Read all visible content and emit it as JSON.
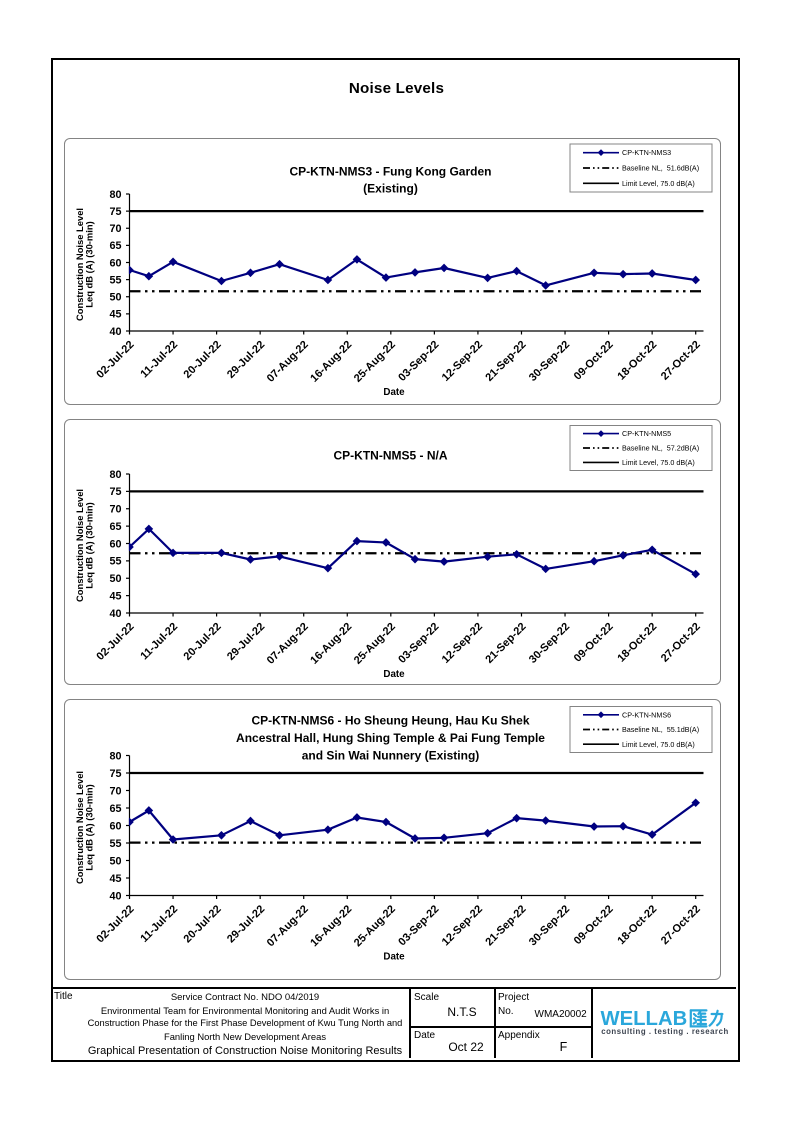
{
  "page": {
    "title": "Noise Levels"
  },
  "chart_data": [
    {
      "type": "line",
      "title": "CP-KTN-NMS3 - Fung Kong Garden (Existing)",
      "title_lines": [
        "CP-KTN-NMS3 - Fung Kong Garden",
        "(Existing)"
      ],
      "xlabel": "Date",
      "ylabel_lines": [
        "Construction Noise Level",
        "Leq dB (A) (30-min)"
      ],
      "ylim": [
        40,
        80
      ],
      "ytick_step": 5,
      "x_tick_labels": [
        "02-Jul-22",
        "11-Jul-22",
        "20-Jul-22",
        "29-Jul-22",
        "07-Aug-22",
        "16-Aug-22",
        "25-Aug-22",
        "03-Sep-22",
        "12-Sep-22",
        "21-Sep-22",
        "30-Sep-22",
        "09-Oct-22",
        "18-Oct-22",
        "27-Oct-22"
      ],
      "x_tick_day_offsets": [
        0,
        9,
        18,
        27,
        36,
        45,
        54,
        63,
        72,
        81,
        90,
        99,
        108,
        117
      ],
      "legend_position": "top-right",
      "legend_labels": [
        "CP-KTN-NMS3",
        "Baseline NL,  51.6dB(A)",
        "Limit Level, 75.0 dB(A)"
      ],
      "series": [
        {
          "name": "CP-KTN-NMS3",
          "color": "#000080",
          "x_dates": [
            "02-Jul-22",
            "06-Jul-22",
            "11-Jul-22",
            "21-Jul-22",
            "27-Jul-22",
            "02-Aug-22",
            "12-Aug-22",
            "18-Aug-22",
            "24-Aug-22",
            "30-Aug-22",
            "05-Sep-22",
            "14-Sep-22",
            "20-Sep-22",
            "26-Sep-22",
            "06-Oct-22",
            "12-Oct-22",
            "18-Oct-22",
            "27-Oct-22"
          ],
          "x_day_offsets": [
            0,
            4,
            9,
            19,
            25,
            31,
            41,
            47,
            53,
            59,
            65,
            74,
            80,
            86,
            96,
            102,
            108,
            117
          ],
          "values": [
            57.8,
            56.0,
            60.2,
            54.6,
            57.0,
            59.5,
            54.9,
            60.9,
            55.6,
            57.1,
            58.4,
            55.5,
            57.5,
            53.3,
            57.0,
            56.6,
            56.8,
            54.9
          ]
        }
      ],
      "baseline": {
        "label": "Baseline NL,  51.6dB(A)",
        "value": 51.6,
        "style": "dash-dot-dot",
        "color": "#000000"
      },
      "limit": {
        "label": "Limit Level, 75.0 dB(A)",
        "value": 75.0,
        "style": "solid",
        "color": "#000000"
      }
    },
    {
      "type": "line",
      "title": "CP-KTN-NMS5 - N/A",
      "title_lines": [
        "CP-KTN-NMS5 - N/A"
      ],
      "xlabel": "Date",
      "ylabel_lines": [
        "Construction Noise Level",
        "Leq dB (A) (30-min)"
      ],
      "ylim": [
        40,
        80
      ],
      "ytick_step": 5,
      "x_tick_labels": [
        "02-Jul-22",
        "11-Jul-22",
        "20-Jul-22",
        "29-Jul-22",
        "07-Aug-22",
        "16-Aug-22",
        "25-Aug-22",
        "03-Sep-22",
        "12-Sep-22",
        "21-Sep-22",
        "30-Sep-22",
        "09-Oct-22",
        "18-Oct-22",
        "27-Oct-22"
      ],
      "x_tick_day_offsets": [
        0,
        9,
        18,
        27,
        36,
        45,
        54,
        63,
        72,
        81,
        90,
        99,
        108,
        117
      ],
      "legend_position": "top-right",
      "legend_labels": [
        "CP-KTN-NMS5",
        "Baseline NL,  57.2dB(A)",
        "Limit Level, 75.0 dB(A)"
      ],
      "series": [
        {
          "name": "CP-KTN-NMS5",
          "color": "#000080",
          "x_dates": [
            "02-Jul-22",
            "06-Jul-22",
            "11-Jul-22",
            "21-Jul-22",
            "27-Jul-22",
            "02-Aug-22",
            "12-Aug-22",
            "18-Aug-22",
            "24-Aug-22",
            "30-Aug-22",
            "05-Sep-22",
            "14-Sep-22",
            "20-Sep-22",
            "26-Sep-22",
            "06-Oct-22",
            "12-Oct-22",
            "18-Oct-22",
            "27-Oct-22"
          ],
          "x_day_offsets": [
            0,
            4,
            9,
            19,
            25,
            31,
            41,
            47,
            53,
            59,
            65,
            74,
            80,
            86,
            96,
            102,
            108,
            117
          ],
          "values": [
            59.0,
            64.2,
            57.3,
            57.3,
            55.4,
            56.3,
            52.9,
            60.7,
            60.3,
            55.5,
            54.8,
            56.2,
            56.9,
            52.7,
            54.9,
            56.6,
            58.2,
            51.2
          ]
        }
      ],
      "baseline": {
        "label": "Baseline NL,  57.2dB(A)",
        "value": 57.2,
        "style": "dash-dot-dot",
        "color": "#000000"
      },
      "limit": {
        "label": "Limit Level, 75.0 dB(A)",
        "value": 75.0,
        "style": "solid",
        "color": "#000000"
      }
    },
    {
      "type": "line",
      "title": "CP-KTN-NMS6 - Ho Sheung Heung, Hau Ku Shek Ancestral Hall, Hung Shing Temple & Pai Fung Temple and Sin Wai Nunnery (Existing)",
      "title_lines": [
        "CP-KTN-NMS6 - Ho Sheung Heung, Hau Ku Shek",
        "Ancestral Hall, Hung Shing Temple & Pai Fung Temple",
        "and Sin Wai Nunnery (Existing)"
      ],
      "xlabel": "Date",
      "ylabel_lines": [
        "Construction Noise Level",
        "Leq dB (A) (30-min)"
      ],
      "ylim": [
        40,
        80
      ],
      "ytick_step": 5,
      "x_tick_labels": [
        "02-Jul-22",
        "11-Jul-22",
        "20-Jul-22",
        "29-Jul-22",
        "07-Aug-22",
        "16-Aug-22",
        "25-Aug-22",
        "03-Sep-22",
        "12-Sep-22",
        "21-Sep-22",
        "30-Sep-22",
        "09-Oct-22",
        "18-Oct-22",
        "27-Oct-22"
      ],
      "x_tick_day_offsets": [
        0,
        9,
        18,
        27,
        36,
        45,
        54,
        63,
        72,
        81,
        90,
        99,
        108,
        117
      ],
      "legend_position": "top-right",
      "legend_labels": [
        "CP-KTN-NMS6",
        "Baseline NL,  55.1dB(A)",
        "Limit Level, 75.0 dB(A)"
      ],
      "series": [
        {
          "name": "CP-KTN-NMS6",
          "color": "#000080",
          "x_dates": [
            "02-Jul-22",
            "06-Jul-22",
            "11-Jul-22",
            "21-Jul-22",
            "27-Jul-22",
            "02-Aug-22",
            "12-Aug-22",
            "18-Aug-22",
            "24-Aug-22",
            "30-Aug-22",
            "05-Sep-22",
            "14-Sep-22",
            "20-Sep-22",
            "26-Sep-22",
            "06-Oct-22",
            "12-Oct-22",
            "18-Oct-22",
            "27-Oct-22"
          ],
          "x_day_offsets": [
            0,
            4,
            9,
            19,
            25,
            31,
            41,
            47,
            53,
            59,
            65,
            74,
            80,
            86,
            96,
            102,
            108,
            117
          ],
          "values": [
            61.0,
            64.3,
            56.0,
            57.2,
            61.3,
            57.2,
            58.8,
            62.3,
            61.0,
            56.3,
            56.5,
            57.8,
            62.1,
            61.4,
            59.7,
            59.8,
            57.4,
            66.5
          ]
        }
      ],
      "baseline": {
        "label": "Baseline NL,  55.1dB(A)",
        "value": 55.1,
        "style": "dash-dot-dot",
        "color": "#000000"
      },
      "limit": {
        "label": "Limit Level, 75.0 dB(A)",
        "value": 75.0,
        "style": "solid",
        "color": "#000000"
      }
    }
  ],
  "title_block": {
    "title_label": "Title",
    "service_contract": "Service Contract No. NDO 04/2019",
    "team_lines": [
      "Environmental Team for Environmental Monitoring and Audit Works in",
      "Construction Phase for the First Phase Development of Kwu Tung North and",
      "Fanling North New Development Areas"
    ],
    "document_title": "Graphical Presentation of Construction Noise Monitoring Results",
    "scale_label": "Scale",
    "scale_value": "N.T.S",
    "project_label": "Project",
    "project_no_label": "No.",
    "project_value": "WMA20002",
    "date_label": "Date",
    "date_value": "Oct 22",
    "appendix_label": "Appendix",
    "appendix_value": "F",
    "logo": {
      "brand": "WELLAB",
      "brand_cjk": "匯力",
      "tagline": "consulting . testing . research",
      "brand_color": "#2AA7DB",
      "tagline_color": "#3D4450"
    }
  }
}
